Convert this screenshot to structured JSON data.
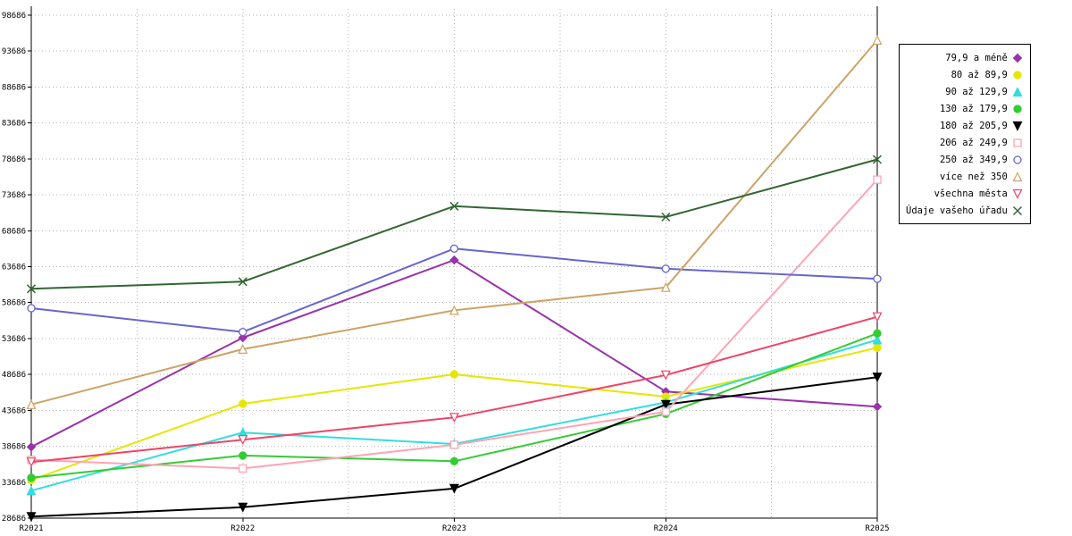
{
  "chart_data": {
    "type": "line",
    "title": "",
    "xlabel": "",
    "ylabel": "",
    "x_categories": [
      "R2021",
      "R2022",
      "R2023",
      "R2024",
      "R2025"
    ],
    "ylim": [
      28686,
      98686
    ],
    "y_ticks": [
      28686,
      33686,
      38686,
      43686,
      48686,
      53686,
      58686,
      63686,
      68686,
      73686,
      78686,
      83686,
      88686,
      93686,
      98686
    ],
    "grid": true,
    "grid_color": "#b3b3b3",
    "axis_color": "#000000",
    "background_color": "#ffffff",
    "legend_position": "top-right",
    "series": [
      {
        "name": "79,9 a méně",
        "color": "#9933AA",
        "marker": "diamond",
        "fill": true,
        "values": [
          38600,
          53800,
          64600,
          46300,
          44200
        ]
      },
      {
        "name": "80 až 89,9",
        "color": "#E6E600",
        "marker": "circle",
        "fill": true,
        "values": [
          34000,
          44600,
          48700,
          45600,
          52400
        ]
      },
      {
        "name": "90 až 129,9",
        "color": "#33DDDD",
        "marker": "triangle-up",
        "fill": true,
        "values": [
          32500,
          40600,
          39000,
          44800,
          53500
        ]
      },
      {
        "name": "130 až 179,9",
        "color": "#33CC33",
        "marker": "circle",
        "fill": true,
        "values": [
          34300,
          37400,
          36600,
          43200,
          54400
        ]
      },
      {
        "name": "180 až 205,9",
        "color": "#000000",
        "marker": "triangle-down",
        "fill": true,
        "values": [
          28900,
          30200,
          32800,
          44500,
          48300
        ]
      },
      {
        "name": "206 až 249,9",
        "color": "#FFA3B5",
        "marker": "square",
        "fill": false,
        "values": [
          36800,
          35600,
          38900,
          43500,
          75800
        ]
      },
      {
        "name": "250 až 349,9",
        "color": "#6666CC",
        "marker": "circle",
        "fill": false,
        "values": [
          57900,
          54600,
          66200,
          63400,
          62000
        ]
      },
      {
        "name": "více než 350",
        "color": "#CCA366",
        "marker": "triangle-up",
        "fill": false,
        "values": [
          44500,
          52200,
          57600,
          60800,
          95200
        ]
      },
      {
        "name": "všechna města",
        "color": "#EE4466",
        "marker": "triangle-down",
        "fill": false,
        "values": [
          36500,
          39600,
          42700,
          48600,
          56700
        ]
      },
      {
        "name": "Údaje vašeho úřadu",
        "color": "#336633",
        "marker": "x",
        "fill": false,
        "values": [
          60600,
          61600,
          72100,
          70600,
          78600
        ]
      }
    ]
  }
}
